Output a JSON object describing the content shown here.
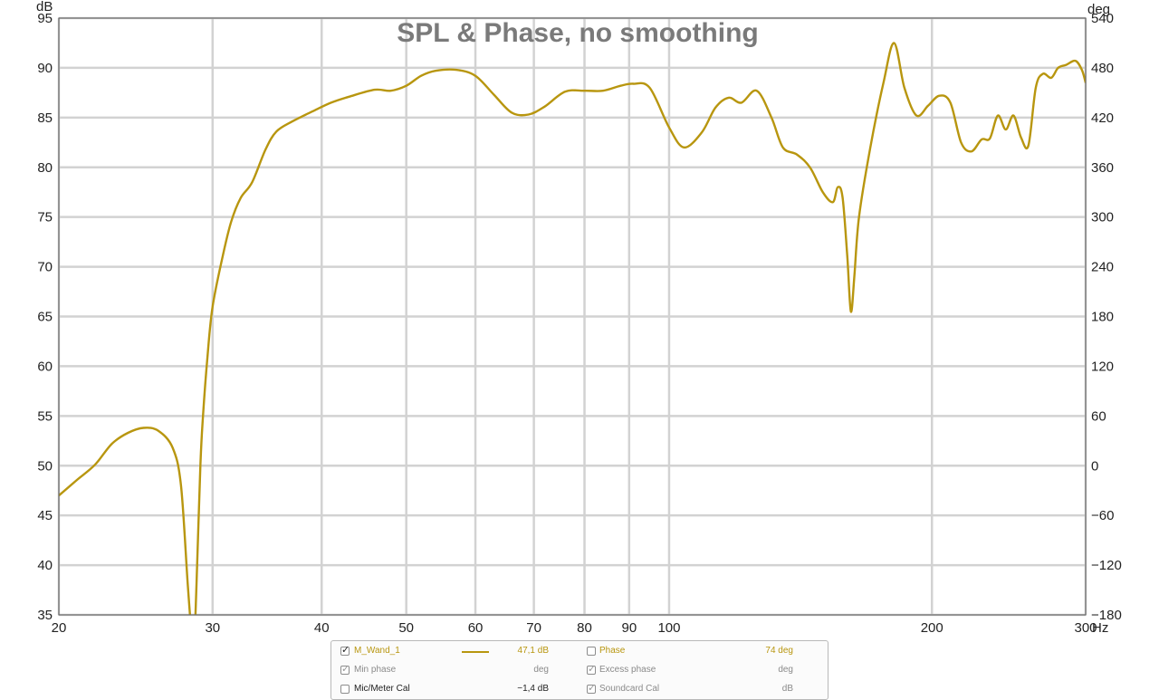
{
  "chart_data": {
    "type": "line",
    "title": "SPL & Phase, no smoothing",
    "y_unit": "dB",
    "y2_unit": "deg",
    "x_unit": "Hz",
    "x_scale": "log",
    "xlim": [
      20,
      300
    ],
    "ylim": [
      35,
      95
    ],
    "y2lim": [
      -180,
      540
    ],
    "x_ticks": [
      20,
      30,
      40,
      50,
      60,
      70,
      80,
      90,
      100,
      200,
      300
    ],
    "x_tick_labels": [
      "20",
      "30",
      "40",
      "50",
      "60",
      "70",
      "80",
      "90",
      "100",
      "200",
      "300"
    ],
    "y_ticks": [
      35,
      40,
      45,
      50,
      55,
      60,
      65,
      70,
      75,
      80,
      85,
      90,
      95
    ],
    "y2_ticks": [
      -180,
      -120,
      -60,
      0,
      60,
      120,
      180,
      240,
      300,
      360,
      420,
      480,
      540
    ],
    "y2_tick_labels": [
      "−180",
      "−120",
      "−60",
      "0",
      "60",
      "120",
      "180",
      "240",
      "300",
      "360",
      "420",
      "480",
      "540"
    ],
    "grid": true,
    "series": [
      {
        "name": "M_Wand_1",
        "color": "#b8960f",
        "x": [
          20,
          21,
          22,
          23,
          24,
          25,
          26,
          27,
          27.6,
          28.1,
          28.4,
          28.6,
          28.75,
          29.05,
          29.25,
          29.6,
          30,
          30.8,
          31.5,
          32.3,
          33.3,
          34.5,
          35.5,
          37,
          39,
          41,
          43,
          46,
          48,
          50,
          52,
          54,
          57,
          60,
          63,
          66,
          69,
          72,
          76,
          80,
          84,
          88,
          91,
          95,
          100,
          104,
          109,
          113,
          117,
          121,
          126,
          131,
          135,
          140,
          145,
          150,
          154,
          156,
          158,
          160,
          161.5,
          163,
          165,
          170,
          176,
          181,
          186,
          192,
          198,
          204,
          210,
          216,
          222,
          228,
          233,
          238,
          243,
          248,
          253,
          258,
          263,
          268,
          274,
          279,
          285,
          292,
          297,
          300
        ],
        "values": [
          47,
          48.6,
          50.1,
          52.2,
          53.3,
          53.8,
          53.5,
          51.8,
          48,
          38,
          33,
          33,
          38,
          50,
          55,
          61,
          66,
          71,
          74.5,
          76.9,
          78.5,
          81.8,
          83.6,
          84.6,
          85.6,
          86.5,
          87.1,
          87.8,
          87.7,
          88.2,
          89.2,
          89.7,
          89.8,
          89.2,
          87.3,
          85.5,
          85.3,
          86.1,
          87.6,
          87.7,
          87.7,
          88.2,
          88.4,
          88,
          84,
          82,
          83.5,
          86,
          87,
          86.5,
          87.7,
          85,
          82,
          81.3,
          80,
          77.5,
          76.5,
          78,
          77,
          71,
          65.5,
          69,
          75,
          82,
          88.5,
          92.5,
          88,
          85.2,
          86.2,
          87.2,
          86.5,
          82.5,
          81.6,
          82.8,
          82.9,
          85.2,
          83.8,
          85.2,
          83,
          82.2,
          88,
          89.4,
          89,
          90,
          90.3,
          90.7,
          89.8,
          88.5
        ]
      }
    ]
  },
  "legend": {
    "rows": [
      {
        "label": "M_Wand_1",
        "checked": true,
        "value": "47,1 dB",
        "label2": "Phase",
        "checked2": false,
        "value2": "74 deg"
      },
      {
        "label": "Min phase",
        "checked": true,
        "value": "deg",
        "label2": "Excess phase",
        "checked2": true,
        "value2": "deg"
      },
      {
        "label": "Mic/Meter Cal",
        "checked": false,
        "value": "−1,4 dB",
        "label2": "Soundcard Cal",
        "checked2": true,
        "value2": "dB"
      }
    ]
  }
}
